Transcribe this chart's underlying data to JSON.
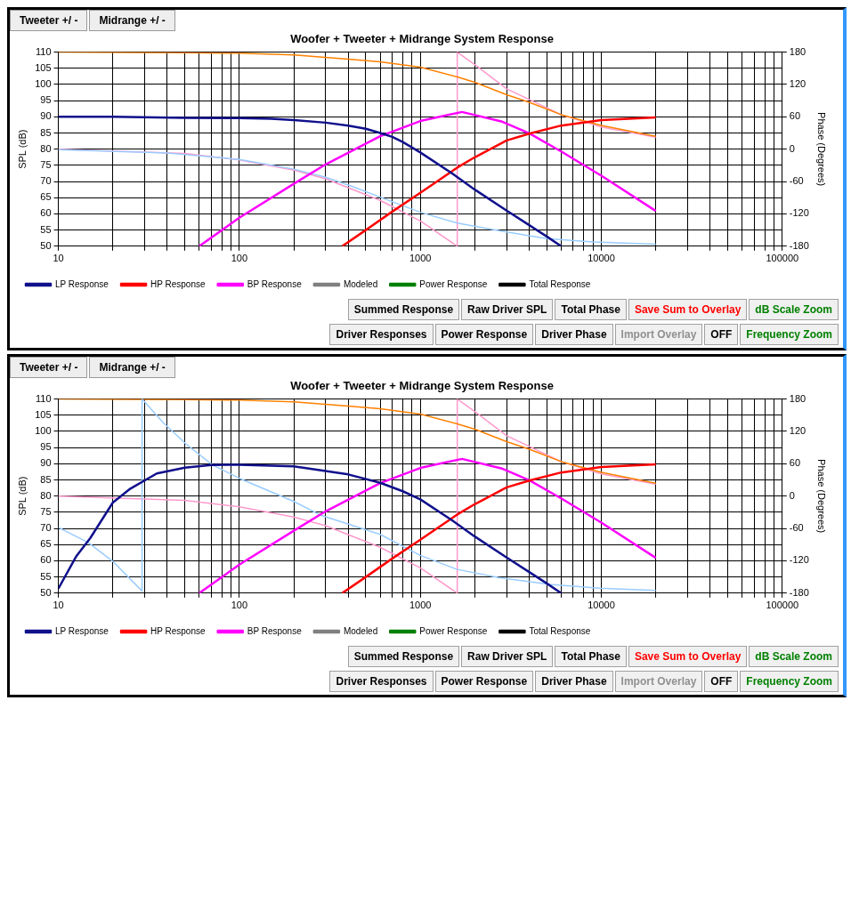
{
  "chart_data": [
    {
      "type": "line",
      "title": "Woofer + Tweeter + Midrange System Response",
      "ylabel": "SPL (dB)",
      "y2label": "Phase (Degrees)",
      "log": "x",
      "grid": true,
      "legend": "bottom left",
      "marker": "none",
      "xlim": [
        10,
        100000
      ],
      "xticks": [
        10,
        {
          "value": 20,
          "label": null
        },
        {
          "value": 30,
          "label": null
        },
        {
          "value": 40,
          "label": null
        },
        {
          "value": 50,
          "label": null
        },
        {
          "value": 60,
          "label": null
        },
        {
          "value": 70,
          "label": null
        },
        {
          "value": 80,
          "label": null
        },
        {
          "value": 90,
          "label": null
        },
        100,
        {
          "value": 200,
          "label": null
        },
        {
          "value": 300,
          "label": null
        },
        {
          "value": 400,
          "label": null
        },
        {
          "value": 500,
          "label": null
        },
        {
          "value": 600,
          "label": null
        },
        {
          "value": 700,
          "label": null
        },
        {
          "value": 800,
          "label": null
        },
        {
          "value": 900,
          "label": null
        },
        1000,
        {
          "value": 2000,
          "label": null
        },
        {
          "value": 3000,
          "label": null
        },
        {
          "value": 4000,
          "label": null
        },
        {
          "value": 5000,
          "label": null
        },
        {
          "value": 6000,
          "label": null
        },
        {
          "value": 7000,
          "label": null
        },
        {
          "value": 8000,
          "label": null
        },
        {
          "value": 9000,
          "label": null
        },
        10000,
        {
          "value": 20000,
          "label": null
        },
        {
          "value": 30000,
          "label": null
        },
        {
          "value": 40000,
          "label": null
        },
        {
          "value": 50000,
          "label": null
        },
        {
          "value": 60000,
          "label": null
        },
        {
          "value": 70000,
          "label": null
        },
        {
          "value": 80000,
          "label": null
        },
        {
          "value": 90000,
          "label": null
        },
        100000
      ],
      "ylim": [
        50,
        110
      ],
      "yticks": [
        50,
        55,
        60,
        65,
        70,
        75,
        80,
        85,
        90,
        95,
        100,
        105,
        110
      ],
      "y2lim": [
        -180,
        180
      ],
      "y2ticks": [
        -180,
        -120,
        -60,
        0,
        60,
        120,
        180
      ],
      "series": [
        {
          "name": "LP Response",
          "color": "#10108c",
          "x": [
            10,
            20,
            50,
            100,
            150,
            200,
            300,
            400,
            500,
            600,
            700,
            800,
            1000,
            1500,
            2000,
            3000,
            4000,
            5000,
            6000
          ],
          "values": [
            90,
            90,
            89.7,
            89.6,
            89.4,
            89,
            88.2,
            87.3,
            86.3,
            85,
            83.8,
            82.2,
            79,
            72.5,
            67.5,
            61,
            56.5,
            53,
            50
          ]
        },
        {
          "name": "HP Response",
          "color": "#ff0000",
          "x": [
            370,
            500,
            700,
            1000,
            1600,
            2000,
            3000,
            4000,
            6000,
            10000,
            20000
          ],
          "values": [
            50,
            55,
            60.7,
            66.5,
            74.3,
            77.5,
            82.7,
            84.8,
            87.3,
            89,
            89.8
          ]
        },
        {
          "name": "BP Response",
          "color": "#ff00ff",
          "x": [
            60,
            100,
            200,
            300,
            600,
            1000,
            1700,
            2800,
            4000,
            6000,
            10000,
            20000
          ],
          "values": [
            50,
            58.8,
            69.3,
            75.3,
            84,
            88.7,
            91.5,
            88.6,
            84.9,
            79.3,
            71.8,
            60.9
          ]
        },
        {
          "name": "Modeled",
          "color": "#808080"
        },
        {
          "name": "Power Response",
          "color": "#008000"
        },
        {
          "name": "Total Response",
          "color": "#000000"
        },
        {
          "color": "#99ccff",
          "axis": "y2",
          "x": [
            10,
            40,
            100,
            200,
            300,
            420,
            600,
            1000,
            1600,
            2800,
            5000,
            9000,
            20000
          ],
          "values": [
            -1,
            -7,
            -19,
            -37,
            -52,
            -69,
            -89,
            -117,
            -137,
            -152,
            -166,
            -172,
            -176
          ]
        },
        {
          "color": "#ff8000",
          "axis": "y2",
          "x": [
            10,
            50,
            100,
            200,
            400,
            600,
            1000,
            1600,
            2000,
            3000,
            4000,
            6000,
            10000,
            20000
          ],
          "values": [
            180,
            179,
            178,
            175,
            167,
            162,
            152,
            134,
            124,
            101,
            87,
            64,
            44,
            24
          ]
        },
        {
          "color": "#ff99cc",
          "axis": "y2",
          "x": [
            10,
            50,
            100,
            200,
            300,
            600,
            1000,
            1600,
            1600,
            2000,
            3000,
            4000,
            6000,
            10000,
            20000
          ],
          "values": [
            0,
            -8,
            -20,
            -39,
            -55,
            -95,
            -133,
            -180,
            180,
            157,
            112,
            92,
            64,
            41,
            22
          ]
        }
      ],
      "annotations": [
        "Tweeter +/ -",
        "Midrange +/ -",
        "Summed Response",
        "Raw Driver SPL",
        "Total Phase",
        "Save Sum to Overlay",
        "dB Scale Zoom",
        "Driver Responses",
        "Power Response",
        "Driver Phase",
        "Import Overlay",
        "OFF",
        "Frequency Zoom"
      ]
    },
    {
      "type": "line",
      "title": "Woofer + Tweeter + Midrange System Response",
      "ylabel": "SPL (dB)",
      "y2label": "Phase (Degrees)",
      "log": "x",
      "grid": true,
      "legend": "bottom left",
      "marker": "none",
      "xlim": [
        10,
        100000
      ],
      "xticks": [
        10,
        {
          "value": 20,
          "label": null
        },
        {
          "value": 30,
          "label": null
        },
        {
          "value": 40,
          "label": null
        },
        {
          "value": 50,
          "label": null
        },
        {
          "value": 60,
          "label": null
        },
        {
          "value": 70,
          "label": null
        },
        {
          "value": 80,
          "label": null
        },
        {
          "value": 90,
          "label": null
        },
        100,
        {
          "value": 200,
          "label": null
        },
        {
          "value": 300,
          "label": null
        },
        {
          "value": 400,
          "label": null
        },
        {
          "value": 500,
          "label": null
        },
        {
          "value": 600,
          "label": null
        },
        {
          "value": 700,
          "label": null
        },
        {
          "value": 800,
          "label": null
        },
        {
          "value": 900,
          "label": null
        },
        1000,
        {
          "value": 2000,
          "label": null
        },
        {
          "value": 3000,
          "label": null
        },
        {
          "value": 4000,
          "label": null
        },
        {
          "value": 5000,
          "label": null
        },
        {
          "value": 6000,
          "label": null
        },
        {
          "value": 7000,
          "label": null
        },
        {
          "value": 8000,
          "label": null
        },
        {
          "value": 9000,
          "label": null
        },
        10000,
        {
          "value": 20000,
          "label": null
        },
        {
          "value": 30000,
          "label": null
        },
        {
          "value": 40000,
          "label": null
        },
        {
          "value": 50000,
          "label": null
        },
        {
          "value": 60000,
          "label": null
        },
        {
          "value": 70000,
          "label": null
        },
        {
          "value": 80000,
          "label": null
        },
        {
          "value": 90000,
          "label": null
        },
        100000
      ],
      "ylim": [
        50,
        110
      ],
      "yticks": [
        50,
        55,
        60,
        65,
        70,
        75,
        80,
        85,
        90,
        95,
        100,
        105,
        110
      ],
      "y2lim": [
        -180,
        180
      ],
      "y2ticks": [
        -180,
        -120,
        -60,
        0,
        60,
        120,
        180
      ],
      "series": [
        {
          "name": "LP Response",
          "color": "#10108c",
          "x": [
            10,
            12.6,
            15,
            20,
            25,
            35,
            50,
            70,
            100,
            200,
            400,
            600,
            800,
            1000,
            1500,
            2000,
            3000,
            4000,
            5000,
            6000
          ],
          "values": [
            51.4,
            61.5,
            67,
            78,
            82.3,
            87,
            88.8,
            89.6,
            89.7,
            89.2,
            86.7,
            84.1,
            81.5,
            79,
            72.5,
            67.5,
            61,
            56.5,
            53,
            50
          ]
        },
        {
          "name": "HP Response",
          "color": "#ff0000",
          "x": [
            370,
            500,
            700,
            1000,
            1600,
            2000,
            3000,
            4000,
            6000,
            10000,
            20000
          ],
          "values": [
            50,
            55,
            60.7,
            66.5,
            74.3,
            77.5,
            82.7,
            84.8,
            87.3,
            89,
            89.8
          ]
        },
        {
          "name": "BP Response",
          "color": "#ff00ff",
          "x": [
            60,
            100,
            200,
            300,
            600,
            1000,
            1700,
            2800,
            4000,
            6000,
            10000,
            20000
          ],
          "values": [
            50,
            58.8,
            69.3,
            75.3,
            84,
            88.7,
            91.5,
            88.6,
            84.9,
            79.3,
            71.8,
            60.9
          ]
        },
        {
          "name": "Modeled",
          "color": "#808080"
        },
        {
          "name": "Power Response",
          "color": "#008000"
        },
        {
          "name": "Total Response",
          "color": "#000000"
        },
        {
          "color": "#99ccff",
          "axis": "y2",
          "x": [
            10,
            14.6,
            20,
            29,
            29,
            38,
            51,
            71,
            100,
            200,
            280,
            600,
            1000,
            1600,
            2700,
            5200,
            9800,
            20000
          ],
          "values": [
            -58,
            -86,
            -121,
            -176,
            180,
            136,
            96,
            58,
            33,
            -10,
            -35,
            -71,
            -110,
            -136,
            -151,
            -164,
            -171,
            -175
          ]
        },
        {
          "color": "#ff8000",
          "axis": "y2",
          "x": [
            10,
            50,
            100,
            200,
            400,
            600,
            1000,
            1600,
            2000,
            3000,
            4000,
            6000,
            10000,
            20000
          ],
          "values": [
            180,
            179,
            178,
            175,
            167,
            162,
            152,
            134,
            124,
            101,
            87,
            64,
            44,
            24
          ]
        },
        {
          "color": "#ff99cc",
          "axis": "y2",
          "x": [
            10,
            50,
            100,
            200,
            300,
            600,
            1000,
            1600,
            1600,
            2000,
            3000,
            4000,
            6000,
            10000,
            20000
          ],
          "values": [
            0,
            -8,
            -20,
            -39,
            -55,
            -95,
            -133,
            -180,
            180,
            157,
            112,
            92,
            64,
            41,
            22
          ]
        }
      ],
      "annotations": [
        "Tweeter +/ -",
        "Midrange +/ -",
        "Summed Response",
        "Raw Driver SPL",
        "Total Phase",
        "Save Sum to Overlay",
        "dB Scale Zoom",
        "Driver Responses",
        "Power Response",
        "Driver Phase",
        "Import Overlay",
        "OFF",
        "Frequency Zoom"
      ]
    }
  ]
}
